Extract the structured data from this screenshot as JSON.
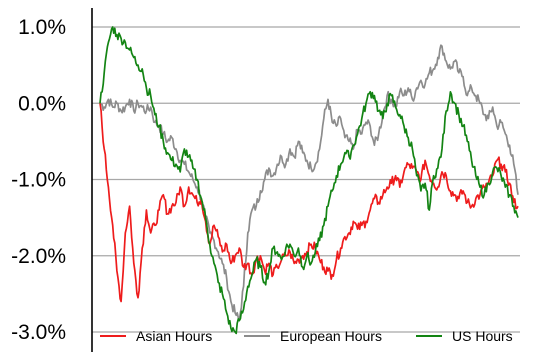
{
  "chart_data": {
    "type": "line",
    "title": "",
    "xlabel": "",
    "ylabel": "",
    "ylim": [
      -3.0,
      1.0
    ],
    "y_ticks": [
      1.0,
      0.0,
      -1.0,
      -2.0,
      -3.0
    ],
    "y_tick_labels": [
      "1.0%",
      "0.0%",
      "-1.0%",
      "-2.0%",
      "-3.0%"
    ],
    "grid": "horizontal",
    "legend_position": "bottom",
    "x_points": 100,
    "series": [
      {
        "name": "Asian Hours",
        "color": "#ee1c1c",
        "values": [
          0.0,
          -0.6,
          -1.1,
          -1.6,
          -2.2,
          -2.6,
          -1.7,
          -1.35,
          -2.1,
          -2.55,
          -1.9,
          -1.4,
          -1.7,
          -1.6,
          -1.4,
          -1.2,
          -1.45,
          -1.35,
          -1.3,
          -1.1,
          -1.35,
          -1.1,
          -1.2,
          -1.3,
          -1.25,
          -1.55,
          -1.85,
          -1.6,
          -1.75,
          -1.95,
          -1.85,
          -2.1,
          -2.0,
          -1.9,
          -2.15,
          -2.1,
          -2.25,
          -2.05,
          -2.0,
          -2.2,
          -2.1,
          -2.25,
          -2.15,
          -2.05,
          -2.0,
          -1.95,
          -2.1,
          -2.05,
          -2.0,
          -1.95,
          -1.85,
          -1.9,
          -2.05,
          -2.15,
          -2.2,
          -2.25,
          -2.05,
          -1.9,
          -1.75,
          -1.7,
          -1.55,
          -1.65,
          -1.6,
          -1.55,
          -1.4,
          -1.25,
          -1.3,
          -1.2,
          -1.1,
          -1.05,
          -0.95,
          -1.1,
          -0.9,
          -0.8,
          -0.85,
          -0.9,
          -1.0,
          -0.75,
          -0.95,
          -1.05,
          -1.1,
          -0.9,
          -0.95,
          -1.15,
          -1.2,
          -1.25,
          -1.15,
          -1.3,
          -1.35,
          -1.25,
          -1.2,
          -1.1,
          -1.05,
          -0.95,
          -0.75,
          -0.8,
          -0.9,
          -1.05,
          -1.3,
          -1.35
        ]
      },
      {
        "name": "European Hours",
        "color": "#8c8c8c",
        "values": [
          0.0,
          -0.05,
          0.05,
          -0.05,
          0.0,
          -0.1,
          -0.05,
          0.05,
          -0.1,
          0.0,
          -0.05,
          -0.1,
          -0.05,
          -0.25,
          -0.3,
          -0.4,
          -0.5,
          -0.45,
          -0.6,
          -0.75,
          -0.8,
          -0.9,
          -1.0,
          -1.1,
          -1.25,
          -1.5,
          -1.7,
          -1.8,
          -1.95,
          -2.1,
          -2.3,
          -2.6,
          -2.75,
          -2.85,
          -2.4,
          -1.7,
          -1.4,
          -1.35,
          -1.15,
          -1.0,
          -0.85,
          -0.95,
          -0.8,
          -0.7,
          -0.8,
          -0.6,
          -0.7,
          -0.5,
          -0.65,
          -0.75,
          -0.85,
          -0.8,
          -0.6,
          -0.2,
          0.05,
          -0.25,
          -0.3,
          -0.2,
          -0.45,
          -0.5,
          -0.6,
          -0.35,
          -0.4,
          -0.25,
          -0.3,
          -0.55,
          -0.4,
          -0.15,
          0.1,
          0.05,
          -0.05,
          0.15,
          0.1,
          0.2,
          0.05,
          0.2,
          0.3,
          0.25,
          0.4,
          0.45,
          0.6,
          0.75,
          0.55,
          0.45,
          0.55,
          0.4,
          0.35,
          0.1,
          0.2,
          0.1,
          0.0,
          -0.15,
          -0.2,
          -0.05,
          -0.3,
          -0.25,
          -0.4,
          -0.55,
          -0.8,
          -1.2
        ]
      },
      {
        "name": "US Hours",
        "color": "#138413",
        "values": [
          0.0,
          0.4,
          0.8,
          1.0,
          0.9,
          0.85,
          0.8,
          0.7,
          0.6,
          0.5,
          0.45,
          0.2,
          0.1,
          -0.15,
          -0.3,
          -0.5,
          -0.65,
          -0.75,
          -0.8,
          -0.9,
          -0.6,
          -0.7,
          -0.85,
          -1.0,
          -1.25,
          -1.5,
          -1.85,
          -2.1,
          -2.35,
          -2.5,
          -2.75,
          -2.95,
          -3.0,
          -2.85,
          -2.7,
          -2.4,
          -2.25,
          -2.05,
          -2.15,
          -2.35,
          -2.2,
          -1.9,
          -1.95,
          -2.05,
          -1.9,
          -1.85,
          -2.0,
          -1.9,
          -2.15,
          -2.0,
          -2.1,
          -1.95,
          -1.8,
          -1.6,
          -1.35,
          -1.15,
          -0.95,
          -0.8,
          -0.65,
          -0.7,
          -0.55,
          -0.4,
          -0.2,
          0.0,
          0.15,
          0.1,
          -0.1,
          -0.2,
          0.0,
          0.1,
          -0.05,
          -0.15,
          -0.3,
          -0.45,
          -0.6,
          -0.95,
          -1.15,
          -1.05,
          -1.4,
          -0.95,
          -0.85,
          -0.6,
          -0.1,
          0.15,
          0.0,
          -0.15,
          -0.3,
          -0.5,
          -0.75,
          -0.95,
          -1.1,
          -1.2,
          -1.05,
          -0.9,
          -0.85,
          -0.95,
          -1.1,
          -1.2,
          -1.35,
          -1.5
        ]
      }
    ]
  }
}
